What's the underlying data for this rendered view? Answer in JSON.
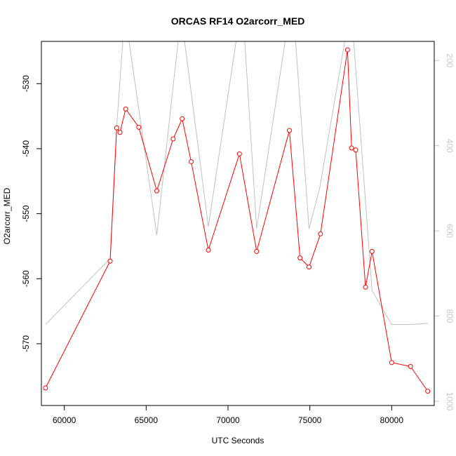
{
  "chart_data": {
    "type": "line",
    "title": "ORCAS RF14 O2arcorr_MED",
    "xlabel": "UTC Seconds",
    "ylabel": "O2arcorr_MED",
    "xlim": [
      58600,
      82600
    ],
    "ylim": [
      -579.5,
      -523.5
    ],
    "y2lim": [
      1010,
      155
    ],
    "x_ticks": [
      60000,
      65000,
      70000,
      75000,
      80000
    ],
    "y_ticks": [
      -570,
      -560,
      -550,
      -540,
      -530
    ],
    "y2_ticks": [
      200,
      400,
      600,
      800,
      1000
    ],
    "series": [
      {
        "color": "#ff0000",
        "marker": "open-circle",
        "axis": "left",
        "points": [
          [
            58850,
            -576.8
          ],
          [
            62800,
            -557.3
          ],
          [
            63200,
            -536.8
          ],
          [
            63400,
            -537.5
          ],
          [
            63750,
            -533.9
          ],
          [
            64550,
            -536.7
          ],
          [
            65650,
            -546.5
          ],
          [
            66650,
            -538.5
          ],
          [
            67200,
            -535.4
          ],
          [
            67750,
            -542.0
          ],
          [
            68800,
            -555.6
          ],
          [
            70700,
            -540.8
          ],
          [
            71750,
            -555.8
          ],
          [
            73750,
            -537.2
          ],
          [
            74400,
            -556.8
          ],
          [
            74950,
            -558.2
          ],
          [
            75650,
            -553.1
          ],
          [
            77300,
            -524.8
          ],
          [
            77550,
            -539.9
          ],
          [
            77800,
            -540.2
          ],
          [
            78400,
            -561.3
          ],
          [
            78800,
            -555.8
          ],
          [
            80000,
            -572.9
          ],
          [
            81150,
            -573.5
          ],
          [
            82200,
            -577.3
          ]
        ]
      },
      {
        "color": "#c0c0c0",
        "marker": "none",
        "axis": "right",
        "points": [
          [
            58850,
            820
          ],
          [
            62800,
            665
          ],
          [
            63200,
            355
          ],
          [
            63600,
            140
          ],
          [
            63900,
            140
          ],
          [
            65650,
            610
          ],
          [
            66650,
            260
          ],
          [
            67000,
            140
          ],
          [
            67300,
            140
          ],
          [
            68800,
            590
          ],
          [
            70550,
            140
          ],
          [
            71000,
            140
          ],
          [
            71750,
            595
          ],
          [
            73550,
            140
          ],
          [
            74100,
            140
          ],
          [
            74950,
            595
          ],
          [
            75600,
            500
          ],
          [
            77200,
            140
          ],
          [
            77650,
            140
          ],
          [
            78800,
            740
          ],
          [
            80000,
            820
          ],
          [
            81150,
            820
          ],
          [
            82200,
            817
          ]
        ]
      }
    ],
    "grid": false,
    "legend": "none"
  }
}
